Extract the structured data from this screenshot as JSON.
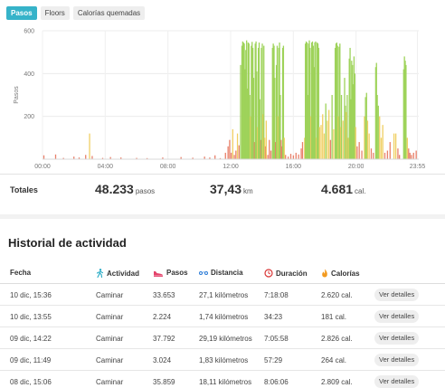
{
  "tabs": [
    {
      "label": "Pasos",
      "active": true
    },
    {
      "label": "Floors",
      "active": false
    },
    {
      "label": "Calorías quemadas",
      "active": false
    }
  ],
  "chart_data": {
    "type": "bar",
    "ylabel": "Pasos",
    "ylim": [
      0,
      600
    ],
    "yticks": [
      200,
      400,
      600
    ],
    "xlim_minutes": [
      0,
      1440
    ],
    "xticks": [
      "00:00",
      "04:00",
      "08:00",
      "12:00",
      "16:00",
      "20:00",
      "23:55"
    ],
    "grid": true,
    "colors": {
      "high": "#9ed35a",
      "mid": "#f0cf63",
      "low": "#e8806a"
    },
    "bars": [
      [
        5,
        18
      ],
      [
        50,
        22
      ],
      [
        80,
        6
      ],
      [
        120,
        12
      ],
      [
        140,
        8
      ],
      [
        165,
        20
      ],
      [
        180,
        120
      ],
      [
        190,
        15
      ],
      [
        230,
        6
      ],
      [
        260,
        10
      ],
      [
        300,
        8
      ],
      [
        360,
        6
      ],
      [
        400,
        5
      ],
      [
        460,
        8
      ],
      [
        530,
        10
      ],
      [
        575,
        7
      ],
      [
        620,
        12
      ],
      [
        640,
        8
      ],
      [
        660,
        18
      ],
      [
        680,
        5
      ],
      [
        700,
        30
      ],
      [
        710,
        60
      ],
      [
        716,
        90
      ],
      [
        722,
        30
      ],
      [
        728,
        140
      ],
      [
        734,
        20
      ],
      [
        740,
        40
      ],
      [
        746,
        120
      ],
      [
        752,
        65
      ],
      [
        758,
        440
      ],
      [
        763,
        530
      ],
      [
        766,
        550
      ],
      [
        769,
        545
      ],
      [
        772,
        540
      ],
      [
        775,
        420
      ],
      [
        778,
        510
      ],
      [
        781,
        555
      ],
      [
        784,
        330
      ],
      [
        787,
        545
      ],
      [
        790,
        540
      ],
      [
        793,
        300
      ],
      [
        796,
        200
      ],
      [
        799,
        530
      ],
      [
        802,
        548
      ],
      [
        805,
        520
      ],
      [
        808,
        380
      ],
      [
        811,
        80
      ],
      [
        814,
        540
      ],
      [
        817,
        550
      ],
      [
        820,
        410
      ],
      [
        823,
        150
      ],
      [
        826,
        520
      ],
      [
        829,
        545
      ],
      [
        832,
        280
      ],
      [
        835,
        90
      ],
      [
        838,
        520
      ],
      [
        841,
        540
      ],
      [
        844,
        210
      ],
      [
        847,
        530
      ],
      [
        850,
        100
      ],
      [
        853,
        60
      ],
      [
        856,
        180
      ],
      [
        862,
        20
      ],
      [
        868,
        90
      ],
      [
        874,
        40
      ],
      [
        880,
        520
      ],
      [
        883,
        540
      ],
      [
        886,
        530
      ],
      [
        889,
        380
      ],
      [
        892,
        80
      ],
      [
        895,
        440
      ],
      [
        898,
        530
      ],
      [
        901,
        200
      ],
      [
        904,
        520
      ],
      [
        907,
        545
      ],
      [
        910,
        300
      ],
      [
        913,
        90
      ],
      [
        916,
        60
      ],
      [
        919,
        520
      ],
      [
        922,
        530
      ],
      [
        925,
        100
      ],
      [
        930,
        20
      ],
      [
        940,
        12
      ],
      [
        950,
        25
      ],
      [
        960,
        18
      ],
      [
        970,
        30
      ],
      [
        980,
        22
      ],
      [
        990,
        50
      ],
      [
        995,
        80
      ],
      [
        1003,
        100
      ],
      [
        1006,
        540
      ],
      [
        1009,
        550
      ],
      [
        1012,
        545
      ],
      [
        1015,
        300
      ],
      [
        1018,
        540
      ],
      [
        1021,
        555
      ],
      [
        1024,
        520
      ],
      [
        1027,
        200
      ],
      [
        1030,
        545
      ],
      [
        1033,
        550
      ],
      [
        1036,
        530
      ],
      [
        1039,
        430
      ],
      [
        1042,
        545
      ],
      [
        1045,
        550
      ],
      [
        1048,
        100
      ],
      [
        1051,
        545
      ],
      [
        1054,
        540
      ],
      [
        1057,
        520
      ],
      [
        1060,
        150
      ],
      [
        1066,
        160
      ],
      [
        1072,
        210
      ],
      [
        1078,
        120
      ],
      [
        1084,
        260
      ],
      [
        1090,
        180
      ],
      [
        1096,
        230
      ],
      [
        1102,
        90
      ],
      [
        1108,
        300
      ],
      [
        1114,
        140
      ],
      [
        1120,
        520
      ],
      [
        1123,
        540
      ],
      [
        1126,
        545
      ],
      [
        1129,
        530
      ],
      [
        1132,
        200
      ],
      [
        1135,
        525
      ],
      [
        1138,
        540
      ],
      [
        1141,
        150
      ],
      [
        1144,
        300
      ],
      [
        1150,
        180
      ],
      [
        1156,
        380
      ],
      [
        1159,
        250
      ],
      [
        1162,
        220
      ],
      [
        1166,
        300
      ],
      [
        1170,
        100
      ],
      [
        1174,
        470
      ],
      [
        1177,
        520
      ],
      [
        1180,
        280
      ],
      [
        1183,
        460
      ],
      [
        1186,
        440
      ],
      [
        1189,
        350
      ],
      [
        1192,
        480
      ],
      [
        1195,
        400
      ],
      [
        1198,
        150
      ],
      [
        1204,
        60
      ],
      [
        1212,
        80
      ],
      [
        1222,
        40
      ],
      [
        1232,
        200
      ],
      [
        1236,
        290
      ],
      [
        1240,
        310
      ],
      [
        1244,
        180
      ],
      [
        1250,
        120
      ],
      [
        1258,
        50
      ],
      [
        1266,
        30
      ],
      [
        1275,
        430
      ],
      [
        1278,
        450
      ],
      [
        1281,
        300
      ],
      [
        1285,
        250
      ],
      [
        1290,
        200
      ],
      [
        1296,
        100
      ],
      [
        1302,
        160
      ],
      [
        1310,
        30
      ],
      [
        1320,
        40
      ],
      [
        1330,
        80
      ],
      [
        1345,
        120
      ],
      [
        1352,
        120
      ],
      [
        1360,
        50
      ],
      [
        1366,
        20
      ],
      [
        1382,
        420
      ],
      [
        1385,
        480
      ],
      [
        1388,
        460
      ],
      [
        1391,
        440
      ],
      [
        1396,
        100
      ],
      [
        1401,
        50
      ],
      [
        1406,
        30
      ],
      [
        1412,
        20
      ],
      [
        1420,
        30
      ],
      [
        1430,
        40
      ]
    ]
  },
  "totals": {
    "label": "Totales",
    "steps": {
      "value": "48.233",
      "unit": "pasos"
    },
    "distance": {
      "value": "37,43",
      "unit": "km"
    },
    "calories": {
      "value": "4.681",
      "unit": "cal."
    }
  },
  "history": {
    "title": "Historial de actividad",
    "headers": {
      "date": "Fecha",
      "activity": "Actividad",
      "steps": "Pasos",
      "distance": "Distancia",
      "duration": "Duración",
      "calories": "Calorías"
    },
    "header_icons": {
      "activity": "walking-icon",
      "steps": "shoe-icon",
      "distance": "route-icon",
      "duration": "clock-icon",
      "calories": "flame-icon"
    },
    "details_label": "Ver detalles",
    "rows": [
      {
        "date": "10 dic, 15:36",
        "activity": "Caminar",
        "steps": "33.653",
        "distance": "27,1 kilómetros",
        "duration": "7:18:08",
        "calories": "2.620 cal."
      },
      {
        "date": "10 dic, 13:55",
        "activity": "Caminar",
        "steps": "2.224",
        "distance": "1,74 kilómetros",
        "duration": "34:23",
        "calories": "181 cal."
      },
      {
        "date": "09 dic, 14:22",
        "activity": "Caminar",
        "steps": "37.792",
        "distance": "29,19 kilómetros",
        "duration": "7:05:58",
        "calories": "2.826 cal."
      },
      {
        "date": "09 dic, 11:49",
        "activity": "Caminar",
        "steps": "3.024",
        "distance": "1,83 kilómetros",
        "duration": "57:29",
        "calories": "264 cal."
      },
      {
        "date": "08 dic, 15:06",
        "activity": "Caminar",
        "steps": "35.859",
        "distance": "18,11 kilómetros",
        "duration": "8:06:06",
        "calories": "2.809 cal."
      }
    ]
  }
}
